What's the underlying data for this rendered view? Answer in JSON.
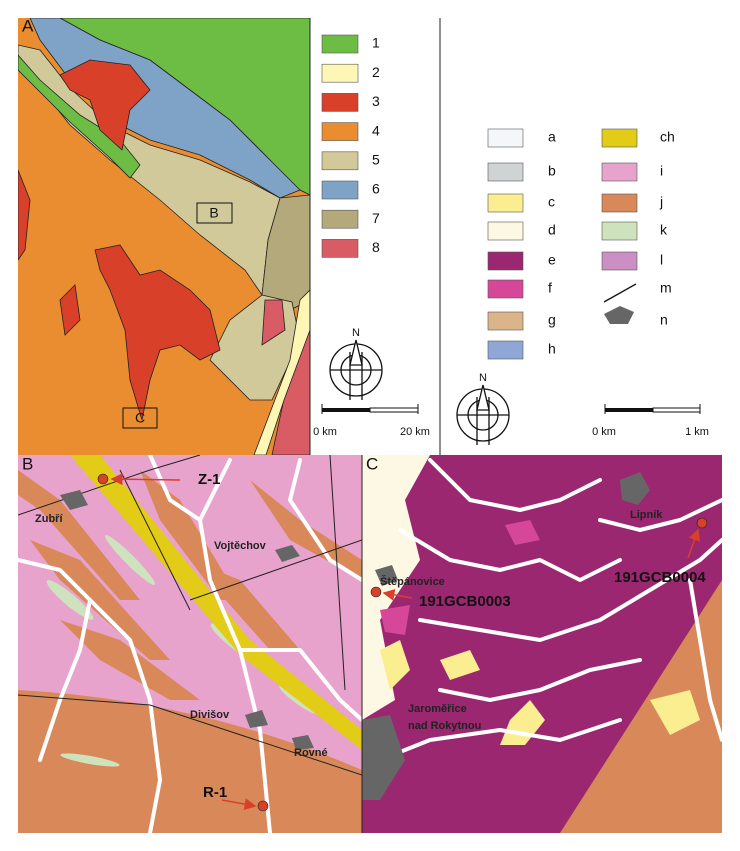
{
  "panels": {
    "a": "A",
    "b": "B",
    "c": "C"
  },
  "inset_boxes": [
    "B",
    "C"
  ],
  "legend_regional": [
    {
      "label": "1",
      "color": "#6dbd45"
    },
    {
      "label": "2",
      "color": "#fdf6b4"
    },
    {
      "label": "3",
      "color": "#d9402a"
    },
    {
      "label": "4",
      "color": "#e98d30"
    },
    {
      "label": "5",
      "color": "#d2c99a"
    },
    {
      "label": "6",
      "color": "#7fa3c6"
    },
    {
      "label": "7",
      "color": "#b3a97a"
    },
    {
      "label": "8",
      "color": "#d95c64"
    }
  ],
  "legend_detail": [
    {
      "label": "a",
      "color": "#f4f7fa"
    },
    {
      "label": "b",
      "color": "#d0d3d4"
    },
    {
      "label": "c",
      "color": "#fbee91"
    },
    {
      "label": "d",
      "color": "#fdf8e4"
    },
    {
      "label": "e",
      "color": "#9b2770"
    },
    {
      "label": "f",
      "color": "#d6479a"
    },
    {
      "label": "g",
      "color": "#dcb48a"
    },
    {
      "label": "h",
      "color": "#8fa7d6"
    },
    {
      "label": "ch",
      "color": "#e2cc17"
    },
    {
      "label": "i",
      "color": "#e7a3cc"
    },
    {
      "label": "j",
      "color": "#d9885a"
    },
    {
      "label": "k",
      "color": "#cfe2be"
    },
    {
      "label": "l",
      "color": "#cc8fc3"
    },
    {
      "label": "m"
    },
    {
      "label": "n"
    }
  ],
  "scale_bars": [
    {
      "north": "N",
      "start": "0 km",
      "end": "20 km"
    },
    {
      "north": "N",
      "start": "0 km",
      "end": "1 km"
    }
  ],
  "map_b": {
    "samples": [
      "Z-1",
      "R-1"
    ],
    "places": [
      "Zubří",
      "Vojtěchov",
      "Divišov",
      "Rovné"
    ]
  },
  "map_c": {
    "samples": [
      "191GCB0003",
      "191GCB0004"
    ],
    "places": [
      "Lipník",
      "Štěpánovice"
    ],
    "town": [
      "Jaroměřice",
      "nad Rokytnou"
    ]
  }
}
